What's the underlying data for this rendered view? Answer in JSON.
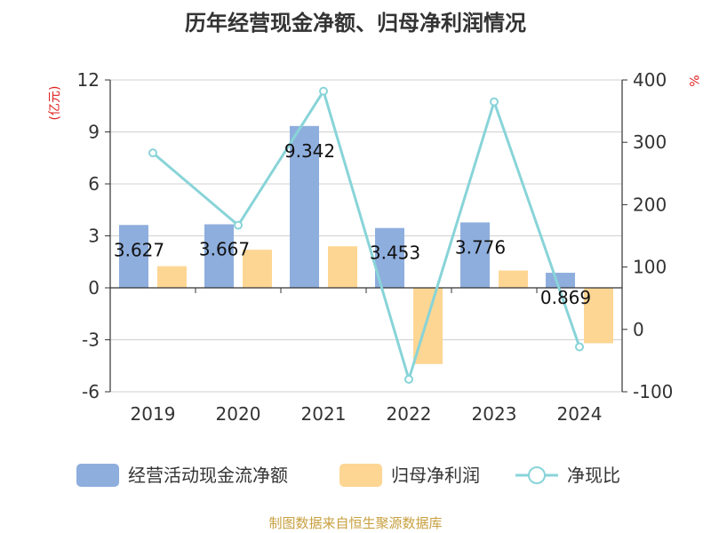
{
  "chart_data": {
    "type": "bar",
    "title": "历年经营现金净额、归母净利润情况",
    "categories": [
      "2019",
      "2020",
      "2021",
      "2022",
      "2023",
      "2024"
    ],
    "series": [
      {
        "name": "经营活动现金流净额",
        "kind": "bar",
        "axis": "left",
        "color": "#8eaedd",
        "values": [
          3.627,
          3.667,
          9.342,
          3.453,
          3.776,
          0.869
        ]
      },
      {
        "name": "归母净利润",
        "kind": "bar",
        "axis": "left",
        "color": "#fdd694",
        "values": [
          1.25,
          2.2,
          2.4,
          -4.4,
          1.0,
          -3.2
        ]
      },
      {
        "name": "净现比",
        "kind": "line",
        "axis": "right",
        "color": "#88d4d8",
        "values": [
          283,
          167,
          382,
          -80,
          365,
          -28
        ]
      }
    ],
    "data_labels": [
      "3.627",
      "3.667",
      "9.342",
      "3.453",
      "3.776",
      "0.869"
    ],
    "y_left": {
      "label": "(亿元)",
      "min": -6,
      "max": 12,
      "ticks": [
        "12",
        "9",
        "6",
        "3",
        "0",
        "-3",
        "-6"
      ]
    },
    "y_right": {
      "label": "%",
      "min": -100,
      "max": 400,
      "ticks": [
        "400",
        "300",
        "200",
        "100",
        "0",
        "-100"
      ]
    },
    "grid": true,
    "legend_position": "bottom",
    "source": "制图数据来自恒生聚源数据库"
  }
}
